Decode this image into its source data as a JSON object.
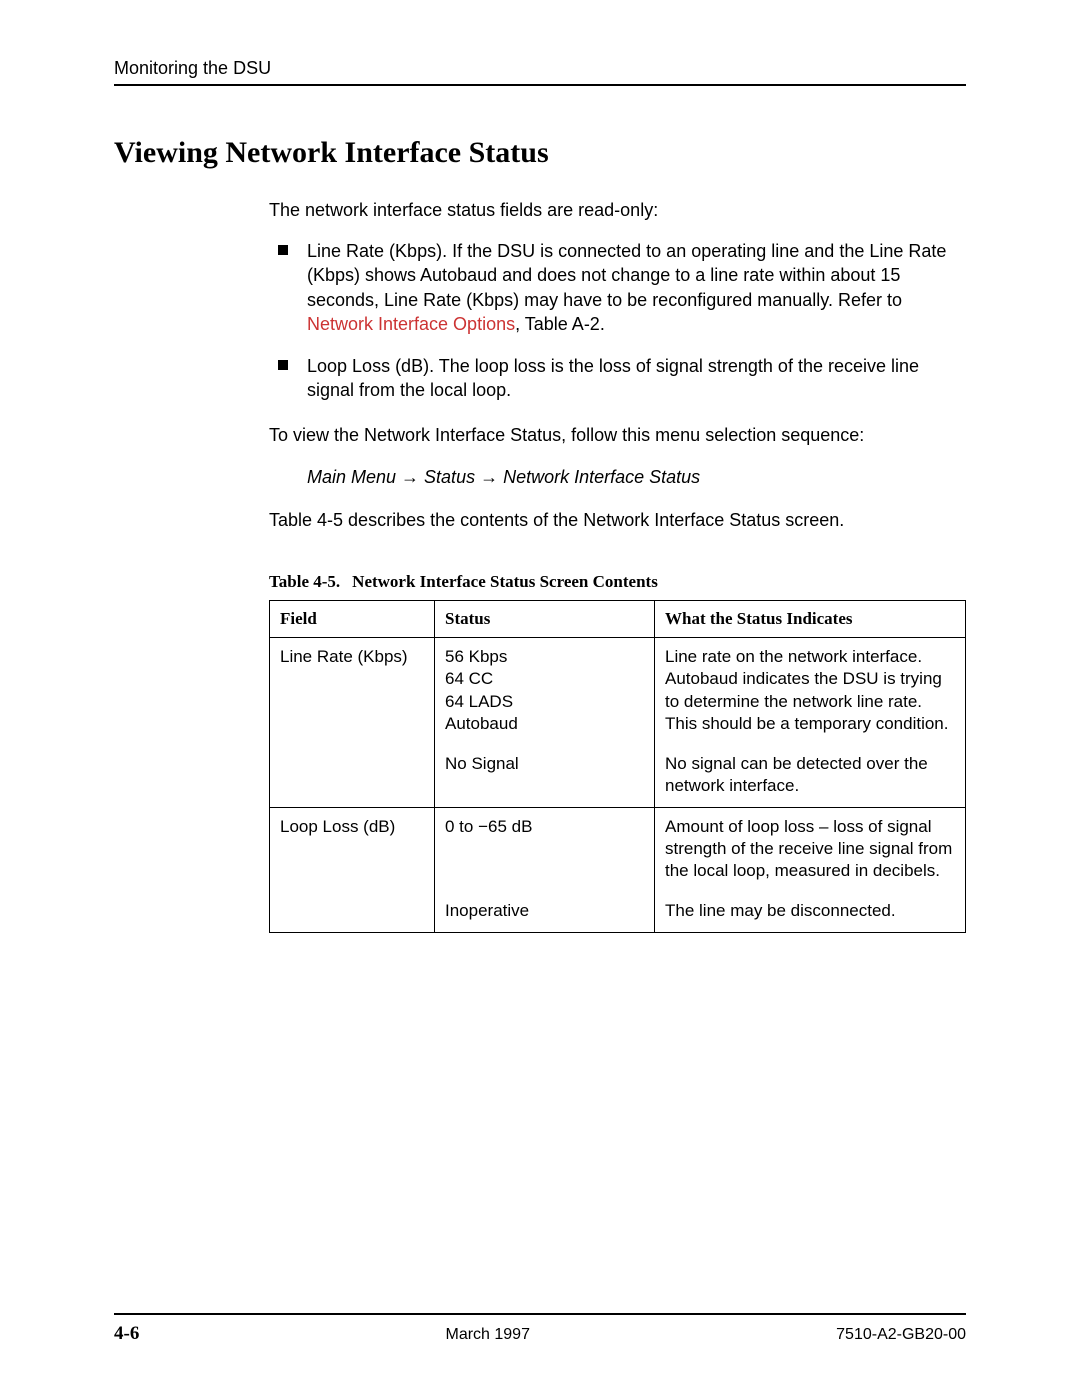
{
  "header": {
    "section_title": "Monitoring the DSU"
  },
  "heading": "Viewing Network Interface Status",
  "intro": "The network interface status fields are read-only:",
  "bullets": [
    {
      "pre": "Line Rate (Kbps). If the DSU is connected to an operating line and the Line Rate (Kbps) shows Autobaud and does not change to a line rate within about 15 seconds, Line Rate (Kbps) may have to be reconfigured manually. Refer to ",
      "link": "Network Interface Options",
      "post": ", Table A-2."
    },
    {
      "pre": "Loop Loss (dB). The loop loss is the loss of signal strength of the receive line signal from the local loop.",
      "link": "",
      "post": ""
    }
  ],
  "para_sequence": "To view the Network Interface Status, follow this menu selection sequence:",
  "menu_path": "Main Menu → Status → Network Interface Status",
  "para_table_ref": "Table 4-5 describes the contents of the Network Interface Status screen.",
  "table": {
    "caption_label": "Table 4-5.",
    "caption_title": "Network Interface Status Screen Contents",
    "columns": [
      "Field",
      "Status",
      "What the Status Indicates"
    ],
    "rows": [
      {
        "field": "Line Rate (Kbps)",
        "status": "56 Kbps\n64 CC\n64 LADS\nAutobaud",
        "indicates": "Line rate on the network interface. Autobaud indicates the DSU is trying to determine the network line rate. This should be a temporary condition.",
        "group_start": true
      },
      {
        "field": "",
        "status": "No Signal",
        "indicates": "No signal can be detected over the network interface.",
        "group_start": false
      },
      {
        "field": "Loop Loss (dB)",
        "status": "0  to  −65 dB",
        "indicates": "Amount of loop loss – loss of signal strength of the receive line signal from the local loop, measured in decibels.",
        "group_start": true
      },
      {
        "field": "",
        "status": "Inoperative",
        "indicates": "The line may be disconnected.",
        "group_start": false
      }
    ]
  },
  "footer": {
    "page": "4-6",
    "date": "March 1997",
    "doc_id": "7510-A2-GB20-00"
  },
  "colors": {
    "link": "#cc3333",
    "rule": "#000000",
    "text": "#000000",
    "background": "#ffffff"
  }
}
